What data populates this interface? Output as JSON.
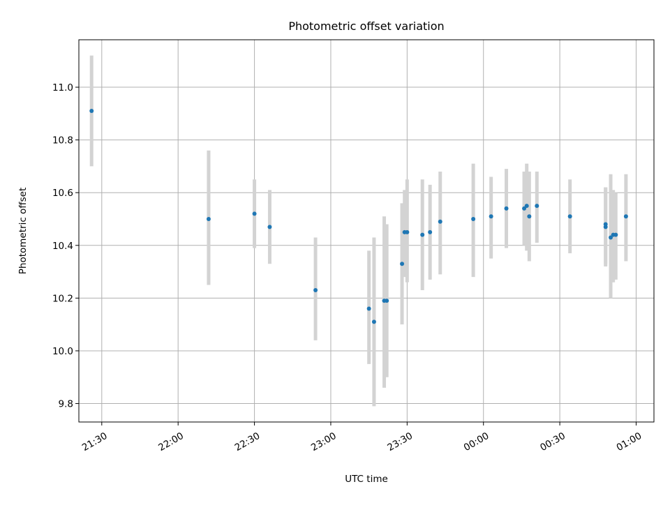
{
  "chart_data": {
    "type": "scatter",
    "title": "Photometric offset variation",
    "xlabel": "UTC time",
    "ylabel": "Photometric offset",
    "x_unit": "UTC time (HH:MM)",
    "xlim": [
      "21:21",
      "01:07"
    ],
    "ylim": [
      9.73,
      11.18
    ],
    "x_ticks": [
      "21:30",
      "22:00",
      "22:30",
      "23:00",
      "23:30",
      "00:00",
      "00:30",
      "01:00"
    ],
    "y_ticks": [
      "9.8",
      "10.0",
      "10.2",
      "10.4",
      "10.6",
      "10.8",
      "11.0"
    ],
    "grid": true,
    "point_color": "#1f77b4",
    "errorbar_color": "#d3d3d3",
    "points": [
      {
        "time": "21:26",
        "value": 10.91,
        "lower": 10.7,
        "upper": 11.12
      },
      {
        "time": "22:12",
        "value": 10.5,
        "lower": 10.25,
        "upper": 10.76
      },
      {
        "time": "22:30",
        "value": 10.52,
        "lower": 10.39,
        "upper": 10.65
      },
      {
        "time": "22:36",
        "value": 10.47,
        "lower": 10.33,
        "upper": 10.61
      },
      {
        "time": "22:54",
        "value": 10.23,
        "lower": 10.04,
        "upper": 10.43
      },
      {
        "time": "23:15",
        "value": 10.16,
        "lower": 9.95,
        "upper": 10.38
      },
      {
        "time": "23:17",
        "value": 10.11,
        "lower": 9.79,
        "upper": 10.43
      },
      {
        "time": "23:21",
        "value": 10.19,
        "lower": 9.86,
        "upper": 10.51
      },
      {
        "time": "23:22",
        "value": 10.19,
        "lower": 9.9,
        "upper": 10.48
      },
      {
        "time": "23:28",
        "value": 10.33,
        "lower": 10.1,
        "upper": 10.56
      },
      {
        "time": "23:29",
        "value": 10.45,
        "lower": 10.28,
        "upper": 10.61
      },
      {
        "time": "23:30",
        "value": 10.45,
        "lower": 10.26,
        "upper": 10.65
      },
      {
        "time": "23:36",
        "value": 10.44,
        "lower": 10.23,
        "upper": 10.65
      },
      {
        "time": "23:39",
        "value": 10.45,
        "lower": 10.27,
        "upper": 10.63
      },
      {
        "time": "23:43",
        "value": 10.49,
        "lower": 10.29,
        "upper": 10.68
      },
      {
        "time": "23:56",
        "value": 10.5,
        "lower": 10.28,
        "upper": 10.71
      },
      {
        "time": "00:03",
        "value": 10.51,
        "lower": 10.35,
        "upper": 10.66
      },
      {
        "time": "00:09",
        "value": 10.54,
        "lower": 10.39,
        "upper": 10.69
      },
      {
        "time": "00:16",
        "value": 10.54,
        "lower": 10.4,
        "upper": 10.68
      },
      {
        "time": "00:17",
        "value": 10.55,
        "lower": 10.38,
        "upper": 10.71
      },
      {
        "time": "00:18",
        "value": 10.51,
        "lower": 10.34,
        "upper": 10.68
      },
      {
        "time": "00:21",
        "value": 10.55,
        "lower": 10.41,
        "upper": 10.68
      },
      {
        "time": "00:34",
        "value": 10.51,
        "lower": 10.37,
        "upper": 10.65
      },
      {
        "time": "00:48",
        "value": 10.47,
        "lower": 10.32,
        "upper": 10.62
      },
      {
        "time": "00:48",
        "value": 10.48,
        "lower": 10.33,
        "upper": 10.62
      },
      {
        "time": "00:50",
        "value": 10.43,
        "lower": 10.2,
        "upper": 10.67
      },
      {
        "time": "00:51",
        "value": 10.44,
        "lower": 10.26,
        "upper": 10.61
      },
      {
        "time": "00:52",
        "value": 10.44,
        "lower": 10.27,
        "upper": 10.6
      },
      {
        "time": "00:56",
        "value": 10.51,
        "lower": 10.34,
        "upper": 10.67
      }
    ]
  }
}
